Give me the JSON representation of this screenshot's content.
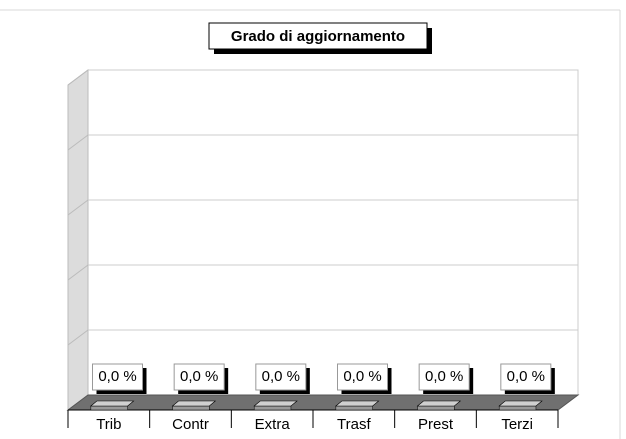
{
  "chart_data": {
    "type": "bar3d",
    "title": "Grado di aggiornamento",
    "categories": [
      "Trib",
      "Contr",
      "Extra",
      "Trasf",
      "Prest",
      "Terzi"
    ],
    "values": [
      0,
      0,
      0,
      0,
      0,
      0
    ],
    "value_labels": [
      "0,0 %",
      "0,0 %",
      "0,0 %",
      "0,0 %",
      "0,0 %",
      "0,0 %"
    ],
    "ylim": [
      0,
      100
    ],
    "yticks": [
      0,
      20,
      40,
      60,
      80,
      100
    ],
    "grid": true,
    "color": "#9a9a9a"
  }
}
